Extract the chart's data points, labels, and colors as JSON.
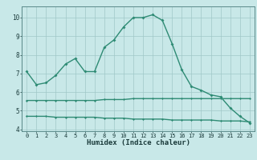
{
  "x": [
    0,
    1,
    2,
    3,
    4,
    5,
    6,
    7,
    8,
    9,
    10,
    11,
    12,
    13,
    14,
    15,
    16,
    17,
    18,
    19,
    20,
    21,
    22,
    23
  ],
  "y_main": [
    7.1,
    6.4,
    6.5,
    6.9,
    7.5,
    7.8,
    7.1,
    7.1,
    8.4,
    8.8,
    9.5,
    10.0,
    10.0,
    10.15,
    9.85,
    8.6,
    7.2,
    6.3,
    6.1,
    5.85,
    5.75,
    5.15,
    4.7,
    4.35
  ],
  "y_mid": [
    5.55,
    5.55,
    5.55,
    5.55,
    5.55,
    5.55,
    5.55,
    5.55,
    5.6,
    5.6,
    5.6,
    5.65,
    5.65,
    5.65,
    5.65,
    5.65,
    5.65,
    5.65,
    5.65,
    5.65,
    5.65,
    5.65,
    5.65,
    5.65
  ],
  "y_low": [
    4.7,
    4.7,
    4.7,
    4.65,
    4.65,
    4.65,
    4.65,
    4.65,
    4.6,
    4.6,
    4.6,
    4.55,
    4.55,
    4.55,
    4.55,
    4.5,
    4.5,
    4.5,
    4.5,
    4.5,
    4.45,
    4.45,
    4.45,
    4.4
  ],
  "line_color": "#2e8b74",
  "bg_color": "#c8e8e8",
  "grid_color": "#a0c8c8",
  "xlabel": "Humidex (Indice chaleur)",
  "xlim": [
    -0.5,
    23.5
  ],
  "ylim": [
    3.9,
    10.6
  ],
  "yticks": [
    4,
    5,
    6,
    7,
    8,
    9,
    10
  ],
  "xticks": [
    0,
    1,
    2,
    3,
    4,
    5,
    6,
    7,
    8,
    9,
    10,
    11,
    12,
    13,
    14,
    15,
    16,
    17,
    18,
    19,
    20,
    21,
    22,
    23
  ]
}
